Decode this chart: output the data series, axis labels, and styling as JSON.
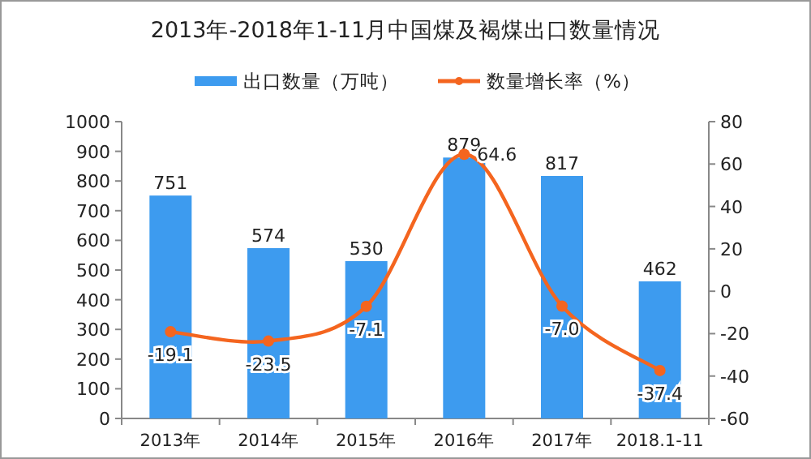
{
  "chart_data": {
    "type": "bar",
    "title": "2013年-2018年1-11月中国煤及褐煤出口数量情况",
    "categories": [
      "2013年",
      "2014年",
      "2015年",
      "2016年",
      "2017年",
      "2018.1-11"
    ],
    "series": [
      {
        "name": "出口数量（万吨）",
        "color": "#3d9bef",
        "values": [
          751,
          574,
          530,
          879,
          817,
          462
        ]
      },
      {
        "name": "数量增长率（%）",
        "type": "line",
        "axis": "y2",
        "color": "#f4651f",
        "marker": "circle",
        "values": [
          -19.1,
          -23.5,
          -7.1,
          64.6,
          -7.0,
          -37.4
        ],
        "value_labels": [
          "-19.1",
          "-23.5",
          "-7.1",
          "64.6",
          "-7.0",
          "-37.4"
        ]
      }
    ],
    "ylim": [
      0,
      1000
    ],
    "yticks": [
      0,
      100,
      200,
      300,
      400,
      500,
      600,
      700,
      800,
      900,
      1000
    ],
    "y2lim": [
      -60,
      80
    ],
    "y2ticks": [
      -60,
      -40,
      -20,
      0,
      20,
      40,
      60,
      80
    ],
    "data_labels": true,
    "grid": false,
    "legend": "top"
  }
}
